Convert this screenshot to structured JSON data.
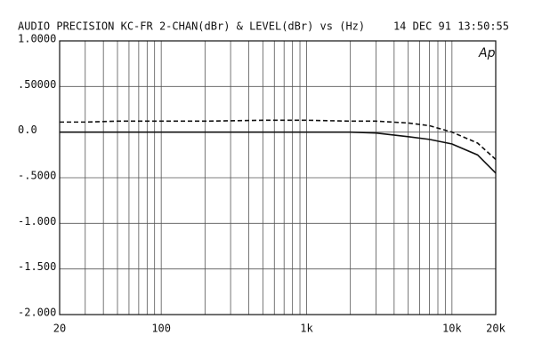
{
  "chart_data": {
    "type": "line",
    "title": "AUDIO PRECISION KC-FR 2-CHAN(dBr) & LEVEL(dBr) vs  (Hz)",
    "timestamp": "14 DEC 91 13:50:55",
    "logo": "Ap",
    "x_log": true,
    "xlim": [
      20,
      20000
    ],
    "xticks": [
      20,
      100,
      {
        "value": 1000,
        "label": "1k"
      },
      {
        "value": 10000,
        "label": "10k"
      },
      {
        "value": 20000,
        "label": "20k"
      }
    ],
    "xgrid": [
      20,
      30,
      40,
      50,
      60,
      70,
      80,
      90,
      100,
      200,
      300,
      400,
      500,
      600,
      700,
      800,
      900,
      1000,
      2000,
      3000,
      4000,
      5000,
      6000,
      7000,
      8000,
      9000,
      10000,
      20000
    ],
    "ylim": [
      -2,
      1
    ],
    "yticks": [
      {
        "value": 1,
        "label": "1.0000"
      },
      {
        "value": 0.5,
        "label": ".50000"
      },
      {
        "value": 0,
        "label": "0.0"
      },
      {
        "value": -0.5,
        "label": "-.5000"
      },
      {
        "value": -1,
        "label": "-1.000"
      },
      {
        "value": -1.5,
        "label": "-1.500"
      },
      {
        "value": -2,
        "label": "-2.000"
      }
    ],
    "grid": true,
    "x": [
      20,
      30,
      50,
      100,
      200,
      500,
      1000,
      2000,
      3000,
      5000,
      7000,
      10000,
      15000,
      20000
    ],
    "series": [
      {
        "color": "#111111",
        "dash": false,
        "values": [
          0,
          0,
          0,
          0,
          0,
          0,
          0,
          0,
          -0.01,
          -0.05,
          -0.08,
          -0.13,
          -0.25,
          -0.45
        ]
      },
      {
        "color": "#111111",
        "dash": true,
        "values": [
          0.11,
          0.11,
          0.12,
          0.12,
          0.12,
          0.13,
          0.13,
          0.12,
          0.12,
          0.1,
          0.07,
          0.0,
          -0.12,
          -0.3
        ]
      }
    ]
  }
}
